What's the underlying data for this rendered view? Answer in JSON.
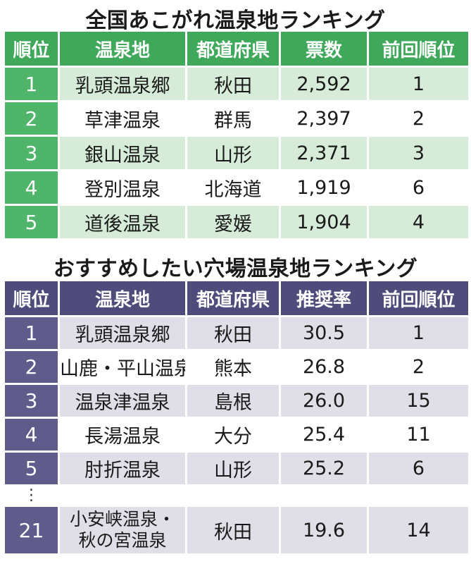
{
  "ranking1": {
    "title": "全国あこがれ温泉地ランキング",
    "headers": [
      "順位",
      "温泉地",
      "都道府県",
      "票数",
      "前回順位"
    ],
    "rows": [
      {
        "rank": "1",
        "onsen": "乳頭温泉郷",
        "pref": "秋田",
        "value": "2,592",
        "prev": "1"
      },
      {
        "rank": "2",
        "onsen": "草津温泉",
        "pref": "群馬",
        "value": "2,397",
        "prev": "2"
      },
      {
        "rank": "3",
        "onsen": "銀山温泉",
        "pref": "山形",
        "value": "2,371",
        "prev": "3"
      },
      {
        "rank": "4",
        "onsen": "登別温泉",
        "pref": "北海道",
        "value": "1,919",
        "prev": "6"
      },
      {
        "rank": "5",
        "onsen": "道後温泉",
        "pref": "愛媛",
        "value": "1,904",
        "prev": "4"
      }
    ],
    "colors": {
      "header": "#3fa85b",
      "rank": "#4fb56a",
      "shade": "#d6ecd9"
    }
  },
  "ranking2": {
    "title": "おすすめしたい穴場温泉地ランキング",
    "headers": [
      "順位",
      "温泉地",
      "都道府県",
      "推奨率",
      "前回順位"
    ],
    "rows": [
      {
        "rank": "1",
        "onsen": "乳頭温泉郷",
        "pref": "秋田",
        "value": "30.5",
        "prev": "1"
      },
      {
        "rank": "2",
        "onsen": "山鹿・平山温泉",
        "pref": "熊本",
        "value": "26.8",
        "prev": "2"
      },
      {
        "rank": "3",
        "onsen": "温泉津温泉",
        "pref": "島根",
        "value": "26.0",
        "prev": "15"
      },
      {
        "rank": "4",
        "onsen": "長湯温泉",
        "pref": "大分",
        "value": "25.4",
        "prev": "11"
      },
      {
        "rank": "5",
        "onsen": "肘折温泉",
        "pref": "山形",
        "value": "25.2",
        "prev": "6"
      }
    ],
    "ellipsis": "⋮",
    "last_row": {
      "rank": "21",
      "onsen_line1": "小安峡温泉・",
      "onsen_line2": "秋の宮温泉",
      "pref": "秋田",
      "value": "19.6",
      "prev": "14"
    },
    "colors": {
      "header": "#4f4b7a",
      "rank": "#5f5b8a",
      "shade": "#e0dfe8"
    }
  }
}
